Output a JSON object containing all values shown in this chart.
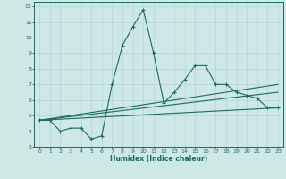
{
  "xlabel": "Humidex (Indice chaleur)",
  "bg_color": "#cde8e5",
  "line_color": "#1a6b5e",
  "grid_color": "#b8d8d5",
  "xlim": [
    -0.5,
    23.5
  ],
  "ylim": [
    3,
    12.3
  ],
  "xticks": [
    0,
    1,
    2,
    3,
    4,
    5,
    6,
    7,
    8,
    9,
    10,
    11,
    12,
    13,
    14,
    15,
    16,
    17,
    18,
    19,
    20,
    21,
    22,
    23
  ],
  "yticks": [
    3,
    4,
    5,
    6,
    7,
    8,
    9,
    10,
    11,
    12
  ],
  "series": [
    [
      0,
      4.7
    ],
    [
      1,
      4.7
    ],
    [
      2,
      4.0
    ],
    [
      3,
      4.2
    ],
    [
      4,
      4.2
    ],
    [
      5,
      3.5
    ],
    [
      6,
      3.7
    ],
    [
      7,
      7.0
    ],
    [
      8,
      9.5
    ],
    [
      9,
      10.7
    ],
    [
      10,
      11.8
    ],
    [
      11,
      9.0
    ],
    [
      12,
      5.8
    ],
    [
      13,
      6.5
    ],
    [
      14,
      7.3
    ],
    [
      15,
      8.2
    ],
    [
      16,
      8.2
    ],
    [
      17,
      7.0
    ],
    [
      18,
      7.0
    ],
    [
      19,
      6.5
    ],
    [
      20,
      6.3
    ],
    [
      21,
      6.1
    ],
    [
      22,
      5.5
    ],
    [
      23,
      5.5
    ]
  ],
  "trend_lines": [
    [
      [
        0,
        4.7
      ],
      [
        23,
        5.5
      ]
    ],
    [
      [
        0,
        4.7
      ],
      [
        23,
        6.5
      ]
    ],
    [
      [
        0,
        4.7
      ],
      [
        23,
        7.0
      ]
    ]
  ]
}
